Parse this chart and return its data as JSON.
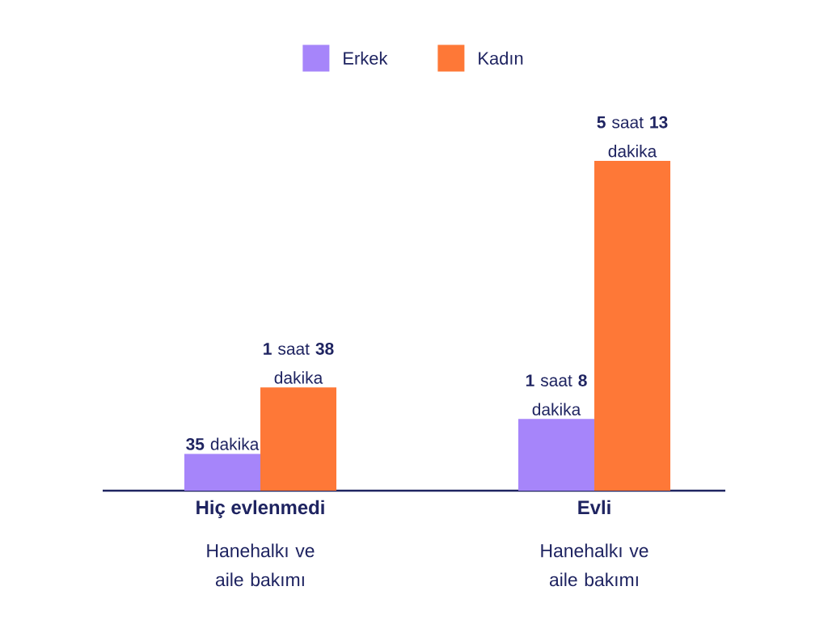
{
  "chart_data": {
    "type": "bar",
    "categories": [
      "Hiç evlenmedi",
      "Evli"
    ],
    "series": [
      {
        "name": "Erkek",
        "color": "#a685fa",
        "values": [
          35,
          68
        ],
        "value_labels": [
          "**35** dakika",
          "**1** saat **8** dakika"
        ]
      },
      {
        "name": "Kadın",
        "color": "#fe7837",
        "values": [
          98,
          313
        ],
        "value_labels": [
          "**1** saat **38** dakika",
          "**5** saat **13** dakika"
        ]
      }
    ],
    "annotations": [
      "Hanehalkı ve aile bakımı",
      "Hanehalkı ve aile bakımı"
    ],
    "legend": "top"
  }
}
